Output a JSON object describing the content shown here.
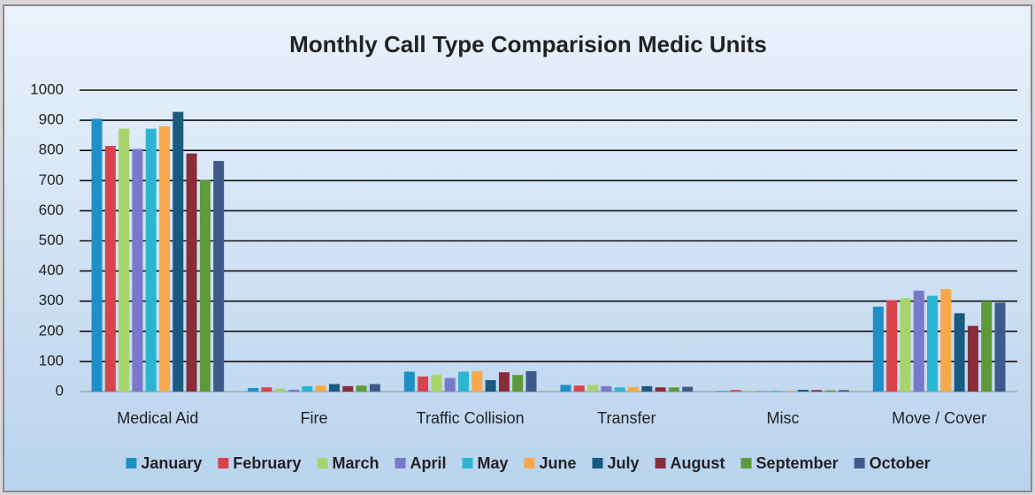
{
  "chart_data": {
    "type": "bar",
    "title": "Monthly Call Type Comparision Medic Units",
    "categories": [
      "Medical Aid",
      "Fire",
      "Traffic Collision",
      "Transfer",
      "Misc",
      "Move / Cover"
    ],
    "series": [
      {
        "name": "January",
        "color": "#1f8fc8",
        "values": [
          905,
          12,
          66,
          22,
          2,
          282
        ]
      },
      {
        "name": "February",
        "color": "#d9434a",
        "values": [
          815,
          14,
          50,
          20,
          5,
          303
        ]
      },
      {
        "name": "March",
        "color": "#a6d46b",
        "values": [
          872,
          10,
          56,
          22,
          3,
          310
        ]
      },
      {
        "name": "April",
        "color": "#7a78c8",
        "values": [
          805,
          6,
          45,
          18,
          1,
          335
        ]
      },
      {
        "name": "May",
        "color": "#2bb5d0",
        "values": [
          872,
          18,
          66,
          14,
          2,
          318
        ]
      },
      {
        "name": "June",
        "color": "#f5a94a",
        "values": [
          880,
          20,
          68,
          15,
          2,
          340
        ]
      },
      {
        "name": "July",
        "color": "#1a5a80",
        "values": [
          928,
          25,
          38,
          18,
          6,
          260
        ]
      },
      {
        "name": "August",
        "color": "#8a2d3a",
        "values": [
          790,
          18,
          64,
          14,
          5,
          218
        ]
      },
      {
        "name": "September",
        "color": "#5e9a3a",
        "values": [
          703,
          20,
          55,
          14,
          4,
          300
        ]
      },
      {
        "name": "October",
        "color": "#3d5a8a",
        "values": [
          765,
          25,
          68,
          16,
          5,
          295
        ]
      }
    ],
    "ylim": [
      0,
      1000
    ],
    "yticks": [
      0,
      100,
      200,
      300,
      400,
      500,
      600,
      700,
      800,
      900,
      1000
    ],
    "grid": true
  }
}
